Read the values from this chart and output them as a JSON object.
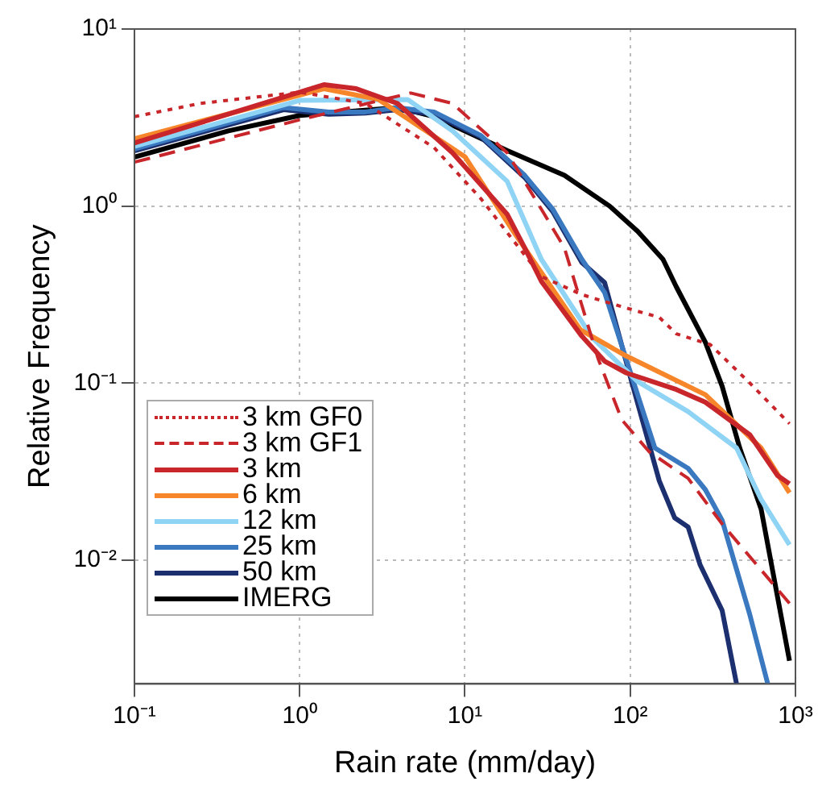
{
  "chart_data": {
    "type": "line",
    "xlabel": "Rain rate (mm/day)",
    "ylabel": "Relative Frequency",
    "log": "xy",
    "grid": true,
    "legend": "bottom left",
    "xlim": [
      0.1,
      1000
    ],
    "ylim": [
      0.002,
      10
    ],
    "xticks": [
      {
        "value": 0.1,
        "label": "10⁻¹"
      },
      {
        "value": 1,
        "label": "10⁰"
      },
      {
        "value": 10,
        "label": "10¹"
      },
      {
        "value": 100,
        "label": "10²"
      },
      {
        "value": 1000,
        "label": "10³"
      }
    ],
    "yticks": [
      {
        "value": 0.01,
        "label": "10⁻²"
      },
      {
        "value": 0.1,
        "label": "10⁻¹"
      },
      {
        "value": 1,
        "label": "10⁰"
      },
      {
        "value": 10,
        "label": "10¹"
      }
    ],
    "series": [
      {
        "name": "3 km GF0",
        "color": "#c8262b",
        "line_style": "dotted",
        "x": [
          0.1,
          0.25,
          1,
          2.5,
          6.5,
          12.5,
          29,
          51,
          89,
          150,
          190,
          305,
          530,
          920
        ],
        "values": [
          3.2,
          3.8,
          4.4,
          3.8,
          2.14,
          1.1,
          0.4,
          0.316,
          0.27,
          0.235,
          0.19,
          0.165,
          0.1,
          0.059
        ]
      },
      {
        "name": "3 km GF1",
        "color": "#c8262b",
        "line_style": "dashed",
        "x": [
          0.1,
          1,
          4.7,
          8.4,
          18,
          29,
          40,
          64,
          89,
          130,
          224,
          360,
          920
        ],
        "values": [
          1.77,
          3.07,
          4.35,
          3.8,
          2.0,
          0.96,
          0.58,
          0.137,
          0.062,
          0.041,
          0.029,
          0.016,
          0.0057
        ]
      },
      {
        "name": "3 km",
        "color": "#c8262b",
        "line_style": "solid",
        "x": [
          0.1,
          1.4,
          2.2,
          3.9,
          8.4,
          18,
          23,
          29,
          51,
          70,
          95,
          190,
          285,
          530,
          780,
          920
        ],
        "values": [
          2.27,
          4.85,
          4.6,
          3.8,
          2.0,
          0.9,
          0.58,
          0.376,
          0.184,
          0.133,
          0.114,
          0.092,
          0.078,
          0.051,
          0.03,
          0.027
        ]
      },
      {
        "name": "6 km",
        "color": "#f7862a",
        "line_style": "solid",
        "x": [
          0.1,
          1.4,
          3,
          10,
          20,
          50,
          95,
          285,
          620,
          920
        ],
        "values": [
          2.4,
          4.6,
          4.0,
          1.9,
          0.7,
          0.2,
          0.142,
          0.086,
          0.043,
          0.024
        ]
      },
      {
        "name": "12 km",
        "color": "#8fd3f5",
        "line_style": "solid",
        "x": [
          0.1,
          1,
          4.5,
          8.4,
          18,
          29,
          59,
          111,
          224,
          440,
          620,
          920
        ],
        "values": [
          2.17,
          3.95,
          4.0,
          2.66,
          1.38,
          0.5,
          0.18,
          0.102,
          0.069,
          0.043,
          0.022,
          0.0122
        ]
      },
      {
        "name": "25 km",
        "color": "#3a78c0",
        "line_style": "solid",
        "x": [
          0.1,
          0.8,
          1.5,
          2.5,
          3.9,
          6.5,
          12.5,
          23,
          34,
          51,
          70,
          141,
          224,
          285,
          360,
          530,
          680
        ],
        "values": [
          2.1,
          3.6,
          3.4,
          3.4,
          3.6,
          3.4,
          2.5,
          1.49,
          0.96,
          0.5,
          0.325,
          0.043,
          0.033,
          0.025,
          0.0168,
          0.0049,
          0.002
        ]
      },
      {
        "name": "50 km",
        "color": "#1c2f6e",
        "line_style": "solid",
        "x": [
          0.1,
          0.8,
          1.5,
          2.5,
          3.9,
          6.5,
          12.5,
          23,
          34,
          51,
          70,
          102,
          150,
          186,
          224,
          265,
          360,
          440
        ],
        "values": [
          2.05,
          3.5,
          3.3,
          3.35,
          3.5,
          3.3,
          2.45,
          1.45,
          0.93,
          0.48,
          0.37,
          0.102,
          0.028,
          0.0173,
          0.0154,
          0.0094,
          0.0052,
          0.002
        ]
      },
      {
        "name": "IMERG",
        "color": "#000000",
        "line_style": "solid",
        "x": [
          0.1,
          0.37,
          1,
          3.9,
          6.5,
          18,
          40,
          75,
          111,
          158,
          190,
          285,
          360,
          460,
          620,
          920
        ],
        "values": [
          1.89,
          2.66,
          3.25,
          3.6,
          3.2,
          2.06,
          1.49,
          1.0,
          0.72,
          0.5,
          0.35,
          0.17,
          0.096,
          0.043,
          0.0194,
          0.0027
        ]
      }
    ]
  }
}
